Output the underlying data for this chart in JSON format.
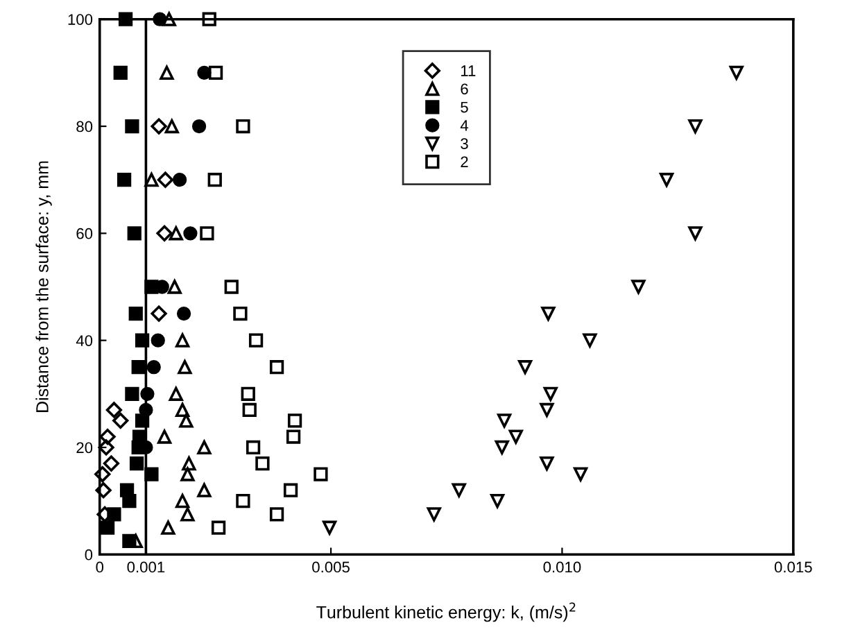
{
  "chart_data": {
    "type": "scatter",
    "xlabel": "Turbulent kinetic energy: k, (m/s)$^{2}$",
    "ylabel": "Distance from the surface: y, mm",
    "xlim": [
      0,
      0.015
    ],
    "xticks": [
      0,
      0.001,
      0.005,
      {
        "value": 0.01,
        "label": "0.010"
      },
      0.015
    ],
    "ylim": [
      0,
      100
    ],
    "yticks": [
      0,
      20,
      40,
      60,
      80,
      100
    ],
    "grid": false,
    "legend": "top",
    "ref_lines": [
      {
        "axis": "x",
        "value": 0.001,
        "color": "#000000",
        "line_style": "solid"
      }
    ],
    "series": [
      {
        "name": "11",
        "color": "#000000",
        "marker": "diamond-open",
        "x": [
          0.00128,
          0.00142,
          0.0014,
          0.00128,
          0.00031,
          0.00045,
          0.00017,
          0.00014,
          0.00025,
          6e-05,
          8e-05,
          0.00011
        ],
        "values": [
          80,
          70,
          60,
          45,
          27,
          25,
          22,
          20,
          17,
          15,
          12,
          7.5
        ]
      },
      {
        "name": "6",
        "color": "#000000",
        "marker": "triangle-open",
        "x": [
          0.0015,
          0.00145,
          0.00156,
          0.00112,
          0.00165,
          0.00162,
          0.00179,
          0.00184,
          0.00165,
          0.00179,
          0.00187,
          0.0014,
          0.00226,
          0.00193,
          0.0019,
          0.00226,
          0.00179,
          0.0019,
          0.00148,
          0.00078
        ],
        "values": [
          100,
          90,
          80,
          70,
          60,
          50,
          40,
          35,
          30,
          27,
          25,
          22,
          20,
          17,
          15,
          12,
          10,
          7.5,
          5,
          2.5
        ]
      },
      {
        "name": "5",
        "color": "#000000",
        "marker": "square",
        "x": [
          0.00056,
          0.00045,
          0.0007,
          0.00053,
          0.00075,
          0.00112,
          0.00078,
          0.00092,
          0.00084,
          0.0007,
          0.00092,
          0.00086,
          0.00084,
          0.0008,
          0.00112,
          0.00059,
          0.00064,
          0.00031,
          0.00017,
          0.00064
        ],
        "values": [
          100,
          90,
          80,
          70,
          60,
          50,
          45,
          40,
          35,
          30,
          25,
          22,
          20,
          17,
          15,
          12,
          10,
          7.5,
          5,
          2.5
        ]
      },
      {
        "name": "4",
        "color": "#000000",
        "marker": "circle",
        "x": [
          0.0013,
          0.00226,
          0.00215,
          0.00173,
          0.00196,
          0.00135,
          0.00182,
          0.00126,
          0.00117,
          0.00103,
          0.001,
          0.001
        ],
        "values": [
          100,
          90,
          80,
          70,
          60,
          50,
          45,
          40,
          35,
          30,
          27,
          20
        ]
      },
      {
        "name": "3",
        "color": "#000000",
        "marker": "triangle-down-open",
        "x": [
          0.01377,
          0.01288,
          0.01226,
          0.01288,
          0.01165,
          0.0097,
          0.0106,
          0.0092,
          0.00975,
          0.00967,
          0.00875,
          0.009,
          0.0087,
          0.00967,
          0.0104,
          0.00777,
          0.0086,
          0.00723,
          0.00497
        ],
        "values": [
          90,
          80,
          70,
          60,
          50,
          45,
          40,
          35,
          30,
          27,
          25,
          22,
          20,
          17,
          15,
          12,
          10,
          7.5,
          5
        ]
      },
      {
        "name": "2",
        "color": "#000000",
        "marker": "square-open",
        "x": [
          0.00237,
          0.00251,
          0.0031,
          0.00249,
          0.00232,
          0.00285,
          0.00304,
          0.00338,
          0.00383,
          0.00321,
          0.00324,
          0.00422,
          0.00419,
          0.00332,
          0.00352,
          0.00478,
          0.00413,
          0.0031,
          0.00383,
          0.00257
        ],
        "values": [
          100,
          90,
          80,
          70,
          60,
          50,
          45,
          40,
          35,
          30,
          27,
          25,
          22,
          20,
          17,
          15,
          12,
          10,
          7.5,
          5
        ]
      }
    ]
  }
}
